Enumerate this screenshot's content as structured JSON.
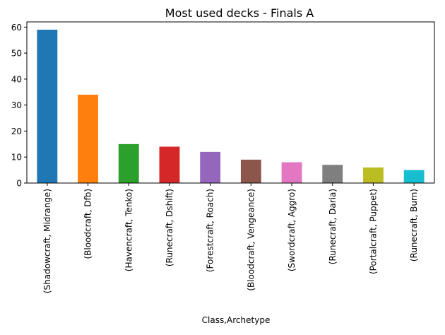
{
  "chart_data": {
    "type": "bar",
    "title": "Most used decks - Finals A",
    "xlabel": "Class,Archetype",
    "ylabel": "",
    "ylim": [
      0,
      62
    ],
    "yticks": [
      0,
      10,
      20,
      30,
      40,
      50,
      60
    ],
    "grid": false,
    "categories": [
      "(Shadowcraft, Midrange)",
      "(Bloodcraft, Dfb)",
      "(Havencraft, Tenko)",
      "(Runecraft, Dshift)",
      "(Forestcraft, Roach)",
      "(Bloodcraft, Vengeance)",
      "(Swordcraft, Aggro)",
      "(Runecraft, Daria)",
      "(Portalcraft, Puppet)",
      "(Runecraft, Burn)"
    ],
    "values": [
      59,
      34,
      15,
      14,
      12,
      9,
      8,
      7,
      6,
      5
    ],
    "colors": [
      "#1f77b4",
      "#ff7f0e",
      "#2ca02c",
      "#d62728",
      "#9467bd",
      "#8c564b",
      "#e377c2",
      "#7f7f7f",
      "#bcbd22",
      "#17becf"
    ]
  }
}
